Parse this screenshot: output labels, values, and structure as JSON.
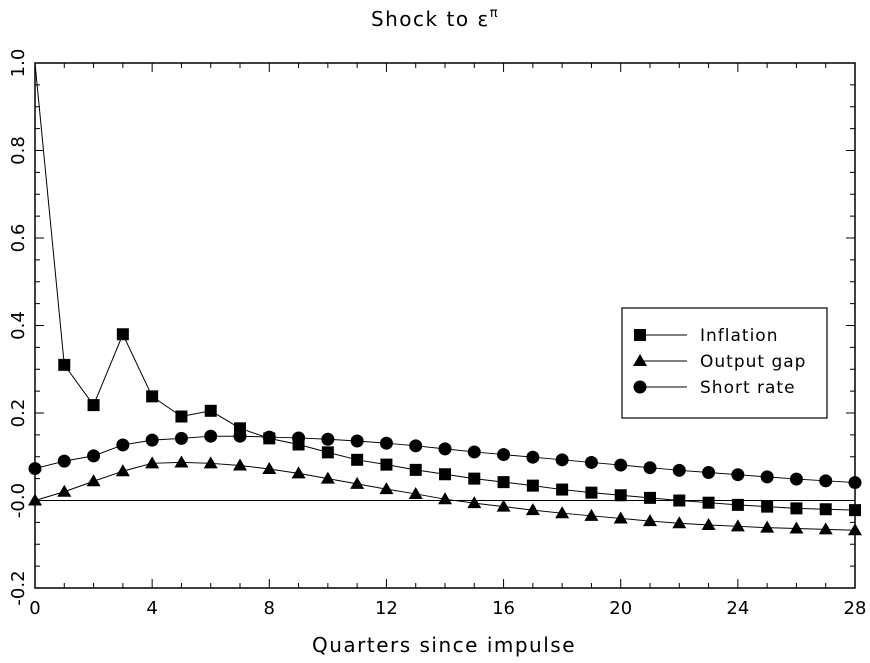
{
  "chart_data": {
    "type": "line",
    "title_main": "Shock to ε",
    "title_sup": "π",
    "xlabel": "Quarters since impulse",
    "ylabel": "",
    "xlim": [
      0,
      28
    ],
    "ylim": [
      -0.2,
      1.0
    ],
    "x_ticks": [
      0,
      4,
      8,
      12,
      16,
      20,
      24,
      28
    ],
    "x_tick_labels": [
      "0",
      "4",
      "8",
      "12",
      "16",
      "20",
      "24",
      "28"
    ],
    "y_ticks": [
      -0.2,
      0.0,
      0.2,
      0.4,
      0.6,
      0.8,
      1.0
    ],
    "y_tick_labels": [
      "-0.2",
      "-0.0",
      "0.2",
      "0.4",
      "0.6",
      "0.8",
      "1.0"
    ],
    "grid": false,
    "zero_line": true,
    "legend_position": "right",
    "x": [
      0,
      1,
      2,
      3,
      4,
      5,
      6,
      7,
      8,
      9,
      10,
      11,
      12,
      13,
      14,
      15,
      16,
      17,
      18,
      19,
      20,
      21,
      22,
      23,
      24,
      25,
      26,
      27,
      28
    ],
    "series": [
      {
        "name": "Inflation",
        "marker": "square",
        "values": [
          1.0,
          0.31,
          0.218,
          0.38,
          0.238,
          0.192,
          0.205,
          0.165,
          0.142,
          0.128,
          0.11,
          0.093,
          0.082,
          0.07,
          0.06,
          0.05,
          0.042,
          0.034,
          0.025,
          0.018,
          0.012,
          0.006,
          0.0,
          -0.005,
          -0.01,
          -0.014,
          -0.018,
          -0.02,
          -0.022
        ]
      },
      {
        "name": "Output gap",
        "marker": "triangle",
        "values": [
          0.0,
          0.02,
          0.044,
          0.067,
          0.085,
          0.087,
          0.085,
          0.08,
          0.072,
          0.062,
          0.05,
          0.038,
          0.026,
          0.015,
          0.003,
          -0.006,
          -0.014,
          -0.022,
          -0.029,
          -0.035,
          -0.041,
          -0.047,
          -0.052,
          -0.056,
          -0.059,
          -0.062,
          -0.064,
          -0.066,
          -0.068
        ]
      },
      {
        "name": "Short rate",
        "marker": "circle",
        "values": [
          0.073,
          0.09,
          0.102,
          0.127,
          0.138,
          0.142,
          0.147,
          0.147,
          0.145,
          0.143,
          0.14,
          0.136,
          0.131,
          0.125,
          0.118,
          0.111,
          0.105,
          0.099,
          0.093,
          0.087,
          0.081,
          0.075,
          0.069,
          0.064,
          0.059,
          0.054,
          0.049,
          0.045,
          0.041
        ]
      }
    ]
  }
}
